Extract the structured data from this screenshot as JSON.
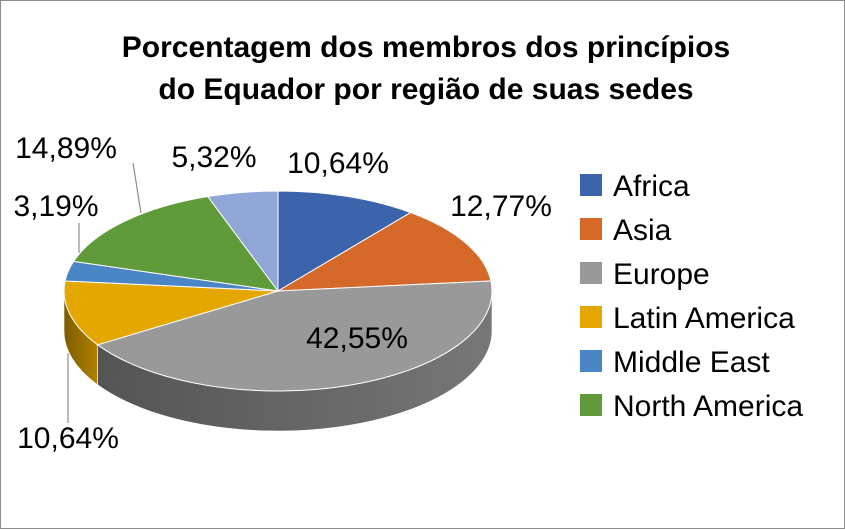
{
  "chart_data": {
    "type": "pie",
    "style": "3d",
    "title_lines": [
      "Porcentagem dos membros dos princípios",
      "do Equador por região de suas sedes"
    ],
    "legend_position": "right",
    "slices": [
      {
        "name": "Africa",
        "value": 10.64,
        "label": "10,64%",
        "color": "#3b64ad"
      },
      {
        "name": "Asia",
        "value": 12.77,
        "label": "12,77%",
        "color": "#d5692a"
      },
      {
        "name": "Europe",
        "value": 42.55,
        "label": "42,55%",
        "color": "#999999"
      },
      {
        "name": "Latin America",
        "value": 10.64,
        "label": "10,64%",
        "color": "#e3a700"
      },
      {
        "name": "Middle East",
        "value": 3.19,
        "label": "3,19%",
        "color": "#4a86c6"
      },
      {
        "name": "North America",
        "value": 14.89,
        "label": "14,89%",
        "color": "#5f9b3b"
      },
      {
        "name": "",
        "value": 5.32,
        "label": "5,32%",
        "color": "#8fa6d6"
      }
    ]
  }
}
